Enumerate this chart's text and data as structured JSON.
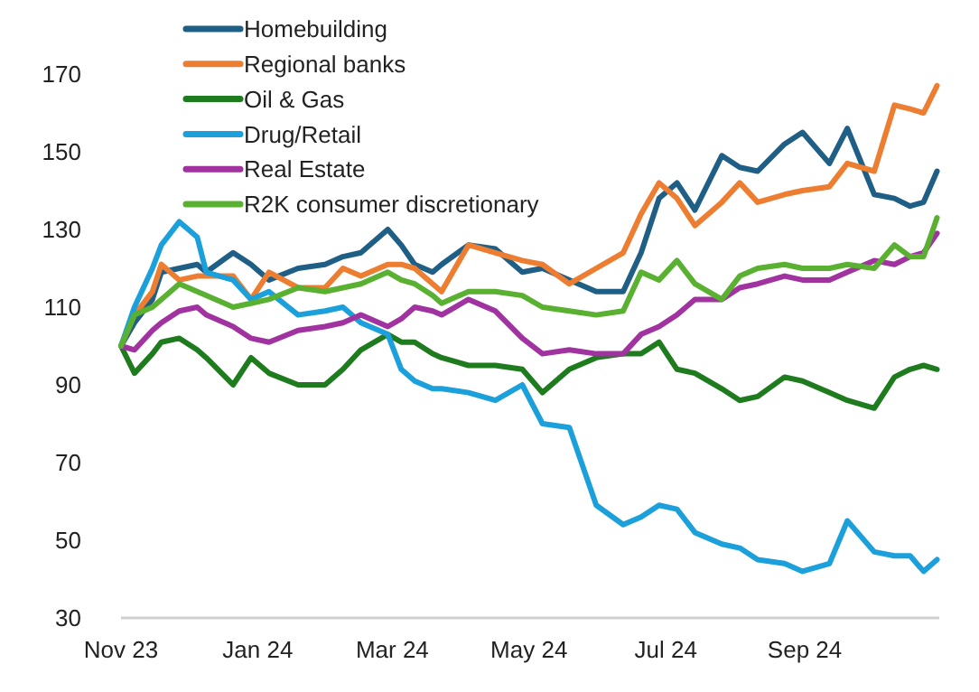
{
  "chart_data": {
    "type": "line",
    "x": [
      "2023-11-01",
      "2023-11-07",
      "2023-11-15",
      "2023-11-19",
      "2023-11-27",
      "2023-12-05",
      "2023-12-09",
      "2023-12-21",
      "2023-12-29",
      "2024-01-06",
      "2024-01-19",
      "2024-01-31",
      "2024-02-08",
      "2024-02-16",
      "2024-02-28",
      "2024-03-05",
      "2024-03-11",
      "2024-03-19",
      "2024-03-23",
      "2024-04-04",
      "2024-04-16",
      "2024-04-28",
      "2024-05-07",
      "2024-05-19",
      "2024-05-31",
      "2024-06-12",
      "2024-06-20",
      "2024-06-28",
      "2024-07-06",
      "2024-07-14",
      "2024-07-26",
      "2024-08-03",
      "2024-08-11",
      "2024-08-23",
      "2024-08-31",
      "2024-09-12",
      "2024-09-20",
      "2024-10-02",
      "2024-10-11",
      "2024-10-18",
      "2024-10-24",
      "2024-10-30"
    ],
    "series": [
      {
        "name": "Homebuilding",
        "color": "#1f5f86",
        "values": [
          100,
          106,
          112,
          119,
          120,
          121,
          119,
          124,
          121,
          117,
          120,
          121,
          123,
          124,
          130,
          126,
          121,
          119,
          121,
          126,
          125,
          119,
          120,
          117,
          114,
          114,
          124,
          138,
          142,
          135,
          149,
          146,
          145,
          152,
          155,
          147,
          156,
          139,
          138,
          136,
          137,
          145
        ]
      },
      {
        "name": "Regional banks",
        "color": "#ed7d31",
        "values": [
          100,
          108,
          114,
          121,
          117,
          118,
          118,
          118,
          112,
          119,
          115,
          115,
          120,
          118,
          121,
          121,
          120,
          116,
          114,
          126,
          124,
          122,
          121,
          116,
          120,
          124,
          134,
          142,
          138,
          131,
          137,
          142,
          137,
          139,
          140,
          141,
          147,
          145,
          162,
          161,
          160,
          167
        ]
      },
      {
        "name": "Oil & Gas",
        "color": "#1e7b1e",
        "values": [
          100,
          93,
          98,
          101,
          102,
          99,
          97,
          90,
          97,
          93,
          90,
          90,
          94,
          99,
          103,
          101,
          101,
          98,
          97,
          95,
          95,
          94,
          88,
          94,
          97,
          98,
          98,
          101,
          94,
          93,
          89,
          86,
          87,
          92,
          91,
          88,
          86,
          84,
          92,
          94,
          95,
          94
        ]
      },
      {
        "name": "Drug/Retail",
        "color": "#1ca0dc",
        "values": [
          100,
          110,
          120,
          126,
          132,
          128,
          119,
          117,
          112,
          114,
          108,
          109,
          110,
          106,
          103,
          94,
          91,
          89,
          89,
          88,
          86,
          90,
          80,
          79,
          59,
          54,
          56,
          59,
          58,
          52,
          49,
          48,
          45,
          44,
          42,
          44,
          55,
          47,
          46,
          46,
          42,
          45
        ]
      },
      {
        "name": "Real Estate",
        "color": "#a033a0",
        "values": [
          100,
          99,
          104,
          106,
          109,
          110,
          108,
          105,
          102,
          101,
          104,
          105,
          106,
          108,
          105,
          107,
          110,
          109,
          108,
          112,
          109,
          102,
          98,
          99,
          98,
          98,
          103,
          105,
          108,
          112,
          112,
          115,
          116,
          118,
          117,
          117,
          119,
          122,
          121,
          123,
          124,
          129
        ]
      },
      {
        "name": "R2K consumer discretionary",
        "color": "#5ab030",
        "values": [
          100,
          108,
          110,
          112,
          116,
          114,
          113,
          110,
          111,
          112,
          115,
          114,
          115,
          116,
          119,
          117,
          116,
          113,
          111,
          114,
          114,
          113,
          110,
          109,
          108,
          109,
          119,
          117,
          122,
          116,
          112,
          118,
          120,
          121,
          120,
          120,
          121,
          120,
          126,
          123,
          123,
          133
        ]
      }
    ],
    "xlim": [
      "2023-11-01",
      "2024-10-31"
    ],
    "xticks": [
      {
        "value": "2023-11-01",
        "label": "Nov 23"
      },
      {
        "value": "2024-01-01",
        "label": "Jan 24"
      },
      {
        "value": "2024-03-01",
        "label": "Mar 24"
      },
      {
        "value": "2024-05-01",
        "label": "May 24"
      },
      {
        "value": "2024-07-01",
        "label": "Jul 24"
      },
      {
        "value": "2024-09-01",
        "label": "Sep 24"
      }
    ],
    "ylim": [
      30,
      170
    ],
    "yticks": [
      30,
      50,
      70,
      90,
      110,
      130,
      150,
      170
    ],
    "grid": false,
    "legend": "top left",
    "marker": "none",
    "line_style": "solid"
  }
}
